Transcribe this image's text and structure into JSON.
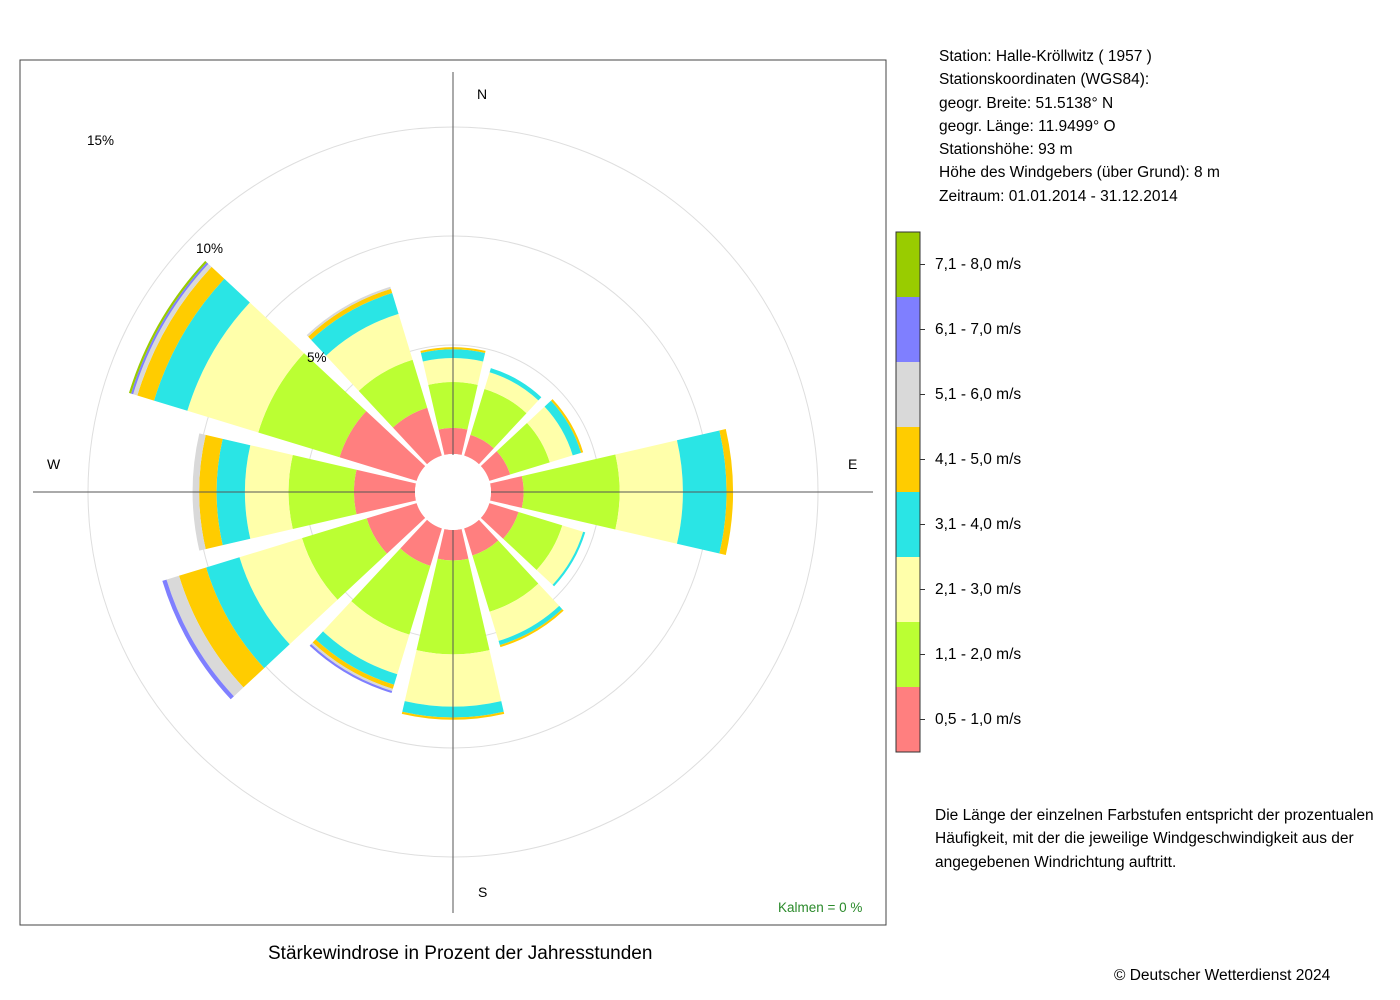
{
  "station": {
    "line1": "Station:  Halle-Kröllwitz  ( 1957 )",
    "line2": "Stationskoordinaten (WGS84):",
    "line3": "geogr. Breite: 51.5138° N",
    "line4": "geogr. Länge: 11.9499° O",
    "line5": "Stationshöhe: 93 m",
    "line6": "Höhe des Windgebers (über Grund): 8 m",
    "line7": "Zeitraum: 01.01.2014 - 31.12.2014"
  },
  "description": "Die Länge der einzelnen Farbstufen entspricht der prozentualen Häufigkeit, mit der die jeweilige Windgeschwindigkeit aus der angegebenen Windrichtung auftritt.",
  "caption": "Stärkewindrose in Prozent der Jahresstunden",
  "copyright": "© Deutscher Wetterdienst  2024",
  "calm_text": "Kalmen  =  0 %",
  "directions": {
    "N": "N",
    "E": "E",
    "S": "S",
    "W": "W"
  },
  "ring_labels": {
    "r5": "5%",
    "r10": "10%",
    "r15": "15%"
  },
  "legend": [
    {
      "label": "0,5 - 1,0 m/s",
      "color": "#ff7f7f"
    },
    {
      "label": "1,1 - 2,0 m/s",
      "color": "#bbff33"
    },
    {
      "label": "2,1 - 3,0 m/s",
      "color": "#ffffaa"
    },
    {
      "label": "3,1 - 4,0 m/s",
      "color": "#2ae5e5"
    },
    {
      "label": "4,1 - 5,0 m/s",
      "color": "#ffcc00"
    },
    {
      "label": "5,1 - 6,0 m/s",
      "color": "#d9d9d9"
    },
    {
      "label": "6,1 - 7,0 m/s",
      "color": "#7f7fff"
    },
    {
      "label": "7,1 - 8,0 m/s",
      "color": "#99cc00"
    }
  ],
  "chart_data": {
    "type": "wind-rose",
    "title": "Stärkewindrose in Prozent der Jahresstunden",
    "unit": "%",
    "rings": [
      5,
      10,
      15
    ],
    "sectors_deg": [
      0,
      30,
      60,
      90,
      120,
      150,
      180,
      210,
      240,
      270,
      300,
      330
    ],
    "series": [
      {
        "name": "0,5 - 1,0 m/s",
        "values": [
          1.2,
          1.0,
          1.0,
          1.5,
          1.4,
          1.3,
          1.4,
          1.8,
          2.4,
          2.8,
          3.7,
          2.3
        ]
      },
      {
        "name": "1,1 - 2,0 m/s",
        "values": [
          2.1,
          2.2,
          1.9,
          4.4,
          2.1,
          2.7,
          4.3,
          3.3,
          3.1,
          3.0,
          3.9,
          2.3
        ]
      },
      {
        "name": "2,1 - 3,0 m/s",
        "values": [
          1.1,
          0.8,
          1.1,
          2.9,
          1.0,
          1.4,
          2.4,
          1.9,
          3.0,
          2.0,
          3.4,
          2.2
        ]
      },
      {
        "name": "3,1 - 4,0 m/s",
        "values": [
          0.4,
          0.2,
          0.4,
          2.0,
          0.1,
          0.2,
          0.5,
          0.5,
          1.6,
          1.3,
          1.6,
          1.0
        ]
      },
      {
        "name": "4,1 - 5,0 m/s",
        "values": [
          0.1,
          0.0,
          0.1,
          0.3,
          0.0,
          0.1,
          0.1,
          0.2,
          1.3,
          0.8,
          0.8,
          0.2
        ]
      },
      {
        "name": "5,1 - 6,0 m/s",
        "values": [
          0.0,
          0.0,
          0.0,
          0.0,
          0.0,
          0.0,
          0.0,
          0.1,
          0.6,
          0.3,
          0.2,
          0.1
        ]
      },
      {
        "name": "6,1 - 7,0 m/s",
        "values": [
          0.0,
          0.0,
          0.0,
          0.0,
          0.0,
          0.0,
          0.0,
          0.1,
          0.2,
          0.0,
          0.1,
          0.0
        ]
      },
      {
        "name": "7,1 - 8,0 m/s",
        "values": [
          0.0,
          0.0,
          0.0,
          0.0,
          0.0,
          0.0,
          0.0,
          0.0,
          0.0,
          0.0,
          0.1,
          0.0
        ]
      }
    ],
    "calm_percent": 0
  }
}
